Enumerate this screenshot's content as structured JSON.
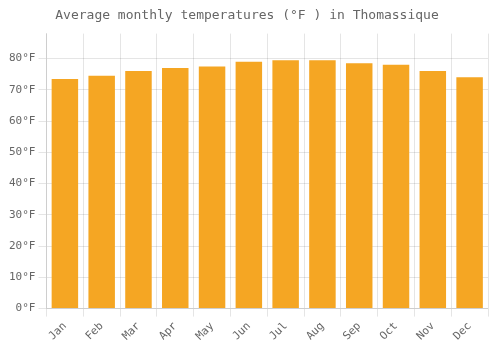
{
  "chart_data": {
    "type": "bar",
    "title": "Average monthly temperatures (°F ) in Thomassique",
    "categories": [
      "Jan",
      "Feb",
      "Mar",
      "Apr",
      "May",
      "Jun",
      "Jul",
      "Aug",
      "Sep",
      "Oct",
      "Nov",
      "Dec"
    ],
    "values": [
      73.5,
      74.5,
      76.0,
      77.0,
      77.5,
      79.0,
      79.5,
      79.5,
      78.5,
      78.0,
      76.0,
      74.0
    ],
    "color": "#F5A623",
    "ylim": [
      0,
      88
    ],
    "yticks": [
      {
        "value": 0,
        "label": "0°F"
      },
      {
        "value": 10,
        "label": "10°F"
      },
      {
        "value": 20,
        "label": "20°F"
      },
      {
        "value": 30,
        "label": "30°F"
      },
      {
        "value": 40,
        "label": "40°F"
      },
      {
        "value": 50,
        "label": "50°F"
      },
      {
        "value": 60,
        "label": "60°F"
      },
      {
        "value": 70,
        "label": "70°F"
      },
      {
        "value": 80,
        "label": "80°F"
      }
    ],
    "grid": true
  }
}
